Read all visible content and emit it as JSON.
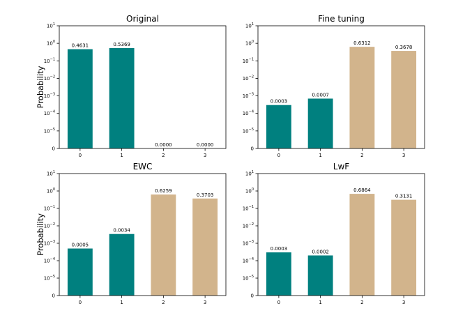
{
  "colors": {
    "teal": "#00807f",
    "tan": "#d2b48c"
  },
  "chart_data": [
    {
      "type": "bar",
      "title": "Original",
      "ylabel": "Probability",
      "yscale": "symlog",
      "categories": [
        "0",
        "1",
        "2",
        "3"
      ],
      "values": [
        0.4631,
        0.5369,
        0.0,
        0.0
      ],
      "value_labels": [
        "0.4631",
        "0.5369",
        "0.0000",
        "0.0000"
      ],
      "bar_colors": [
        "teal",
        "teal",
        "tan",
        "tan"
      ],
      "ylim": [
        0,
        10
      ]
    },
    {
      "type": "bar",
      "title": "Fine tuning",
      "ylabel": "",
      "yscale": "symlog",
      "categories": [
        "0",
        "1",
        "2",
        "3"
      ],
      "values": [
        0.0003,
        0.0007,
        0.6312,
        0.3678
      ],
      "value_labels": [
        "0.0003",
        "0.0007",
        "0.6312",
        "0.3678"
      ],
      "bar_colors": [
        "teal",
        "teal",
        "tan",
        "tan"
      ],
      "ylim": [
        0,
        10
      ]
    },
    {
      "type": "bar",
      "title": "EWC",
      "ylabel": "Probability",
      "yscale": "symlog",
      "categories": [
        "0",
        "1",
        "2",
        "3"
      ],
      "values": [
        0.0005,
        0.0034,
        0.6259,
        0.3703
      ],
      "value_labels": [
        "0.0005",
        "0.0034",
        "0.6259",
        "0.3703"
      ],
      "bar_colors": [
        "teal",
        "teal",
        "tan",
        "tan"
      ],
      "ylim": [
        0,
        10
      ]
    },
    {
      "type": "bar",
      "title": "LwF",
      "ylabel": "",
      "yscale": "symlog",
      "categories": [
        "0",
        "1",
        "2",
        "3"
      ],
      "values": [
        0.0003,
        0.0002,
        0.6864,
        0.3131
      ],
      "value_labels": [
        "0.0003",
        "0.0002",
        "0.6864",
        "0.3131"
      ],
      "bar_colors": [
        "teal",
        "teal",
        "tan",
        "tan"
      ],
      "ylim": [
        0,
        10
      ]
    }
  ]
}
